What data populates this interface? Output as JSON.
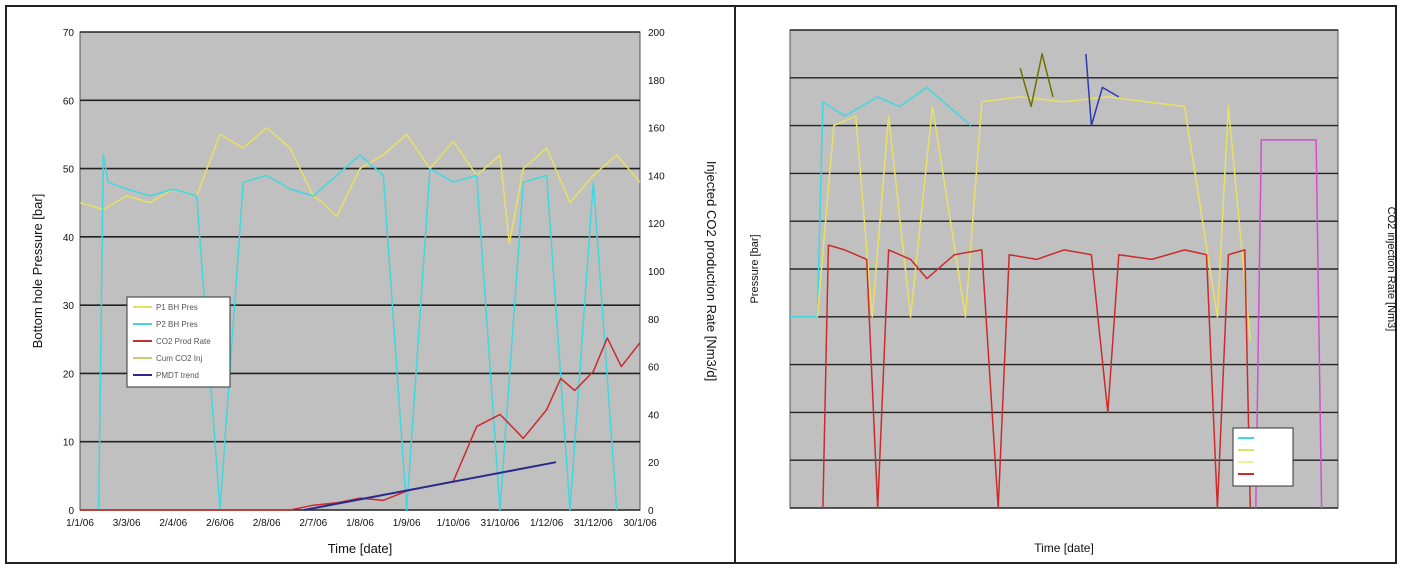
{
  "chart_data": [
    {
      "type": "line",
      "title": "",
      "xlabel": "Time [date]",
      "ylabel": "Bottom hole Pressure [bar]",
      "y2label": "Injected CO2 production Rate [Nm3/d]",
      "ylim": [
        0,
        70
      ],
      "y2lim": [
        0,
        200
      ],
      "yticks": [
        0,
        10,
        20,
        30,
        40,
        50,
        60,
        70
      ],
      "y2ticks": [
        0,
        20,
        40,
        60,
        80,
        100,
        120,
        140,
        160,
        180,
        200
      ],
      "xticks": [
        "1/1/06",
        "3/3/06",
        "2/4/06",
        "2/6/06",
        "2/8/06",
        "2/7/06",
        "1/8/06",
        "1/9/06",
        "1/10/06",
        "31/10/06",
        "1/12/06",
        "31/12/06",
        "30/1/06"
      ],
      "grid": true,
      "legend_position": "left",
      "legend": [
        "P1 BH Pres",
        "P2 BH Pres",
        "CO2 Prod Rate",
        "Cum CO2 Inj",
        "PMDT trend"
      ],
      "series": [
        {
          "name": "P1 BH Pres",
          "color": "#e8e060",
          "axis": "y",
          "x": [
            0,
            0.5,
            1,
            1.5,
            2,
            2.5,
            3,
            3.5,
            4,
            4.5,
            5,
            5.2,
            5.5,
            6,
            6.5,
            7,
            7.5,
            8,
            8.5,
            9,
            9.2,
            9.5,
            10,
            10.5,
            11,
            11.5,
            12
          ],
          "y": [
            45,
            44,
            46,
            45,
            47,
            46,
            55,
            53,
            56,
            53,
            46,
            45,
            43,
            50,
            52,
            55,
            50,
            54,
            49,
            52,
            39,
            50,
            53,
            45,
            49,
            52,
            48
          ]
        },
        {
          "name": "P2 BH Pres",
          "color": "#40d8e0",
          "axis": "y",
          "x": [
            0.4,
            0.5,
            0.6,
            1,
            1.5,
            2,
            2.5,
            3,
            3.5,
            4,
            4.5,
            5,
            6,
            6.5,
            7,
            7.5,
            8,
            8.5,
            9,
            9.5,
            10,
            10.5,
            11,
            11.5
          ],
          "y": [
            0,
            52,
            48,
            47,
            46,
            47,
            46,
            0,
            48,
            49,
            47,
            46,
            52,
            49,
            0,
            50,
            48,
            49,
            0,
            48,
            49,
            0,
            48,
            0
          ]
        },
        {
          "name": "CO2 Prod Rate",
          "color": "#cc2b2b",
          "axis": "y2",
          "x": [
            0,
            4.5,
            5,
            5.5,
            6,
            6.5,
            7,
            7.5,
            8,
            8.5,
            9,
            9.5,
            10,
            10.3,
            10.6,
            11,
            11.3,
            11.6,
            12
          ],
          "y": [
            0,
            0,
            2,
            3,
            5,
            4,
            8,
            10,
            12,
            35,
            40,
            30,
            42,
            55,
            50,
            58,
            72,
            60,
            70
          ]
        },
        {
          "name": "PMDT trend",
          "color": "#2a2a8a",
          "axis": "y2",
          "x": [
            4.8,
            10.2
          ],
          "y": [
            0,
            20
          ]
        }
      ]
    },
    {
      "type": "line",
      "title": "",
      "xlabel": "Time [date]",
      "ylabel": "Pressure [bar]",
      "y2label": "CO2 injection Rate [Nm3]",
      "grid": true,
      "legend_position": "bottom-right",
      "series": [
        {
          "name": "",
          "color": "#40d8e0"
        },
        {
          "name": "",
          "color": "#e8e060"
        },
        {
          "name": "",
          "color": "#f0f0a0"
        },
        {
          "name": "",
          "color": "#cc2b2b"
        }
      ]
    }
  ]
}
